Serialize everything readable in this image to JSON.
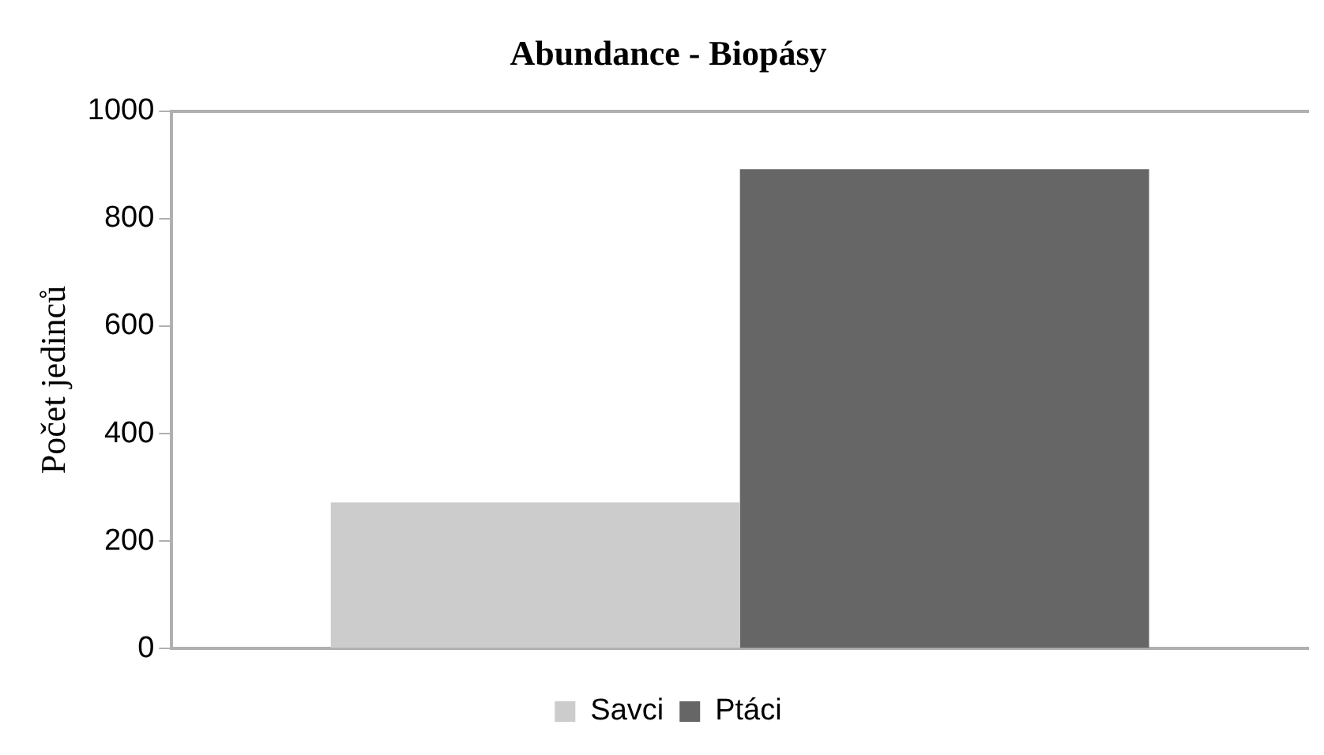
{
  "chart_data": {
    "type": "bar",
    "title": "Abundance - Biopásy",
    "ylabel": "Počet jedinců",
    "categories": [
      null
    ],
    "series": [
      {
        "name": "Savci",
        "color": "#cccccc",
        "values": [
          272
        ]
      },
      {
        "name": "Ptáci",
        "color": "#666666",
        "values": [
          892
        ]
      }
    ],
    "ylim": [
      0,
      1000
    ],
    "yticks": [
      0,
      200,
      400,
      600,
      800,
      1000
    ],
    "grid": false,
    "legend": "bottom"
  }
}
